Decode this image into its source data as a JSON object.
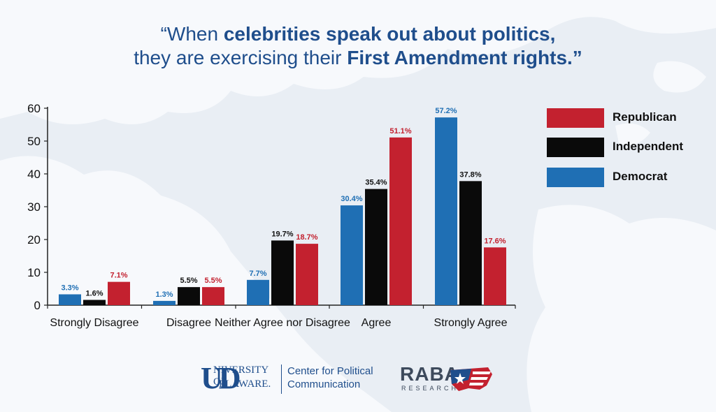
{
  "title": {
    "line1": [
      {
        "text": "“When ",
        "bold": false
      },
      {
        "text": "celebrities speak out about politics,",
        "bold": true
      }
    ],
    "line2": [
      {
        "text": "they are exercising their ",
        "bold": false
      },
      {
        "text": "First Amendment rights.”",
        "bold": true
      }
    ]
  },
  "colors": {
    "republican": "#c3212f",
    "independent": "#0a0a0a",
    "democrat": "#1f6fb4",
    "title": "#1f4e8c",
    "background": "#e9eef4",
    "land": "#f7f9fc"
  },
  "chart_data": {
    "type": "bar",
    "categories": [
      "Strongly Disagree",
      "Disagree",
      "Neither Agree nor Disagree",
      "Agree",
      "Strongly Agree"
    ],
    "series": [
      {
        "name": "Democrat",
        "key": "democrat",
        "values": [
          3.3,
          1.3,
          7.7,
          30.4,
          57.2
        ],
        "labels": [
          "3.3%",
          "1.3%",
          "7.7%",
          "30.4%",
          "57.2%"
        ]
      },
      {
        "name": "Independent",
        "key": "independent",
        "values": [
          1.6,
          5.5,
          19.7,
          35.4,
          37.8
        ],
        "labels": [
          "1.6%",
          "5.5%",
          "19.7%",
          "35.4%",
          "37.8%"
        ]
      },
      {
        "name": "Republican",
        "key": "republican",
        "values": [
          7.1,
          5.5,
          18.7,
          51.1,
          17.6
        ],
        "labels": [
          "7.1%",
          "5.5%",
          "18.7%",
          "51.1%",
          "17.6%"
        ]
      }
    ],
    "ylim": [
      0,
      60
    ],
    "yticks": [
      0,
      10,
      20,
      30,
      40,
      50,
      60
    ],
    "ytick_labels": [
      "0",
      "10",
      "20",
      "30",
      "40",
      "50",
      "60"
    ],
    "xlabel": "",
    "ylabel": "",
    "legend_position": "top-right",
    "grid": false
  },
  "legend": [
    {
      "label": "Republican",
      "key": "republican"
    },
    {
      "label": "Independent",
      "key": "independent"
    },
    {
      "label": "Democrat",
      "key": "democrat"
    }
  ],
  "footer": {
    "ud_big": "UD",
    "ud_line1": "NIVERSITY OF",
    "ud_line2": "ELAWARE.",
    "center_line1": "Center for Political",
    "center_line2": "Communication",
    "raba_word": "RABA",
    "raba_sub": "RESEARCH"
  }
}
